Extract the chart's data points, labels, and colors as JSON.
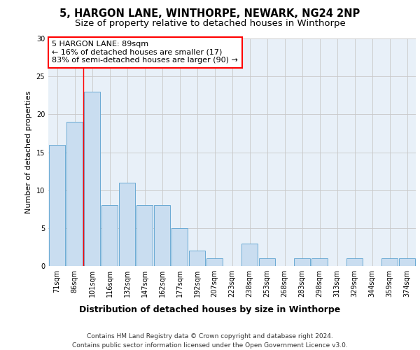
{
  "title1": "5, HARGON LANE, WINTHORPE, NEWARK, NG24 2NP",
  "title2": "Size of property relative to detached houses in Winthorpe",
  "xlabel": "Distribution of detached houses by size in Winthorpe",
  "ylabel": "Number of detached properties",
  "categories": [
    "71sqm",
    "86sqm",
    "101sqm",
    "116sqm",
    "132sqm",
    "147sqm",
    "162sqm",
    "177sqm",
    "192sqm",
    "207sqm",
    "223sqm",
    "238sqm",
    "253sqm",
    "268sqm",
    "283sqm",
    "298sqm",
    "313sqm",
    "329sqm",
    "344sqm",
    "359sqm",
    "374sqm"
  ],
  "values": [
    16,
    19,
    23,
    8,
    11,
    8,
    8,
    5,
    2,
    1,
    0,
    3,
    1,
    0,
    1,
    1,
    0,
    1,
    0,
    1,
    1
  ],
  "bar_color": "#c9ddf0",
  "bar_edge_color": "#6aaad4",
  "bar_edge_width": 0.7,
  "grid_color": "#c8c8c8",
  "background_color": "#e8f0f8",
  "red_line_x": 1.5,
  "annotation_text": "5 HARGON LANE: 89sqm\n← 16% of detached houses are smaller (17)\n83% of semi-detached houses are larger (90) →",
  "annotation_box_color": "white",
  "annotation_box_edgecolor": "red",
  "footer": "Contains HM Land Registry data © Crown copyright and database right 2024.\nContains public sector information licensed under the Open Government Licence v3.0.",
  "ylim": [
    0,
    30
  ],
  "yticks": [
    0,
    5,
    10,
    15,
    20,
    25,
    30
  ],
  "title1_fontsize": 10.5,
  "title2_fontsize": 9.5,
  "xlabel_fontsize": 9,
  "ylabel_fontsize": 8,
  "tick_fontsize": 7,
  "annotation_fontsize": 8,
  "footer_fontsize": 6.5
}
